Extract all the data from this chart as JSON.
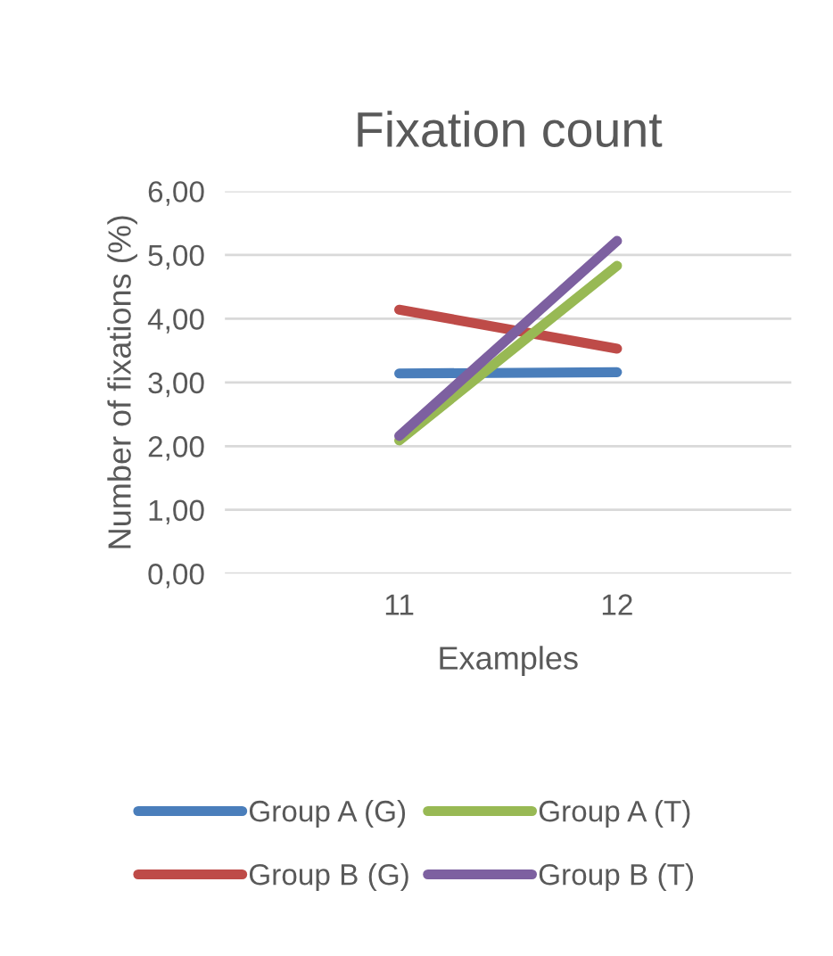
{
  "chart_data": {
    "type": "line",
    "title": "Fixation count",
    "xlabel": "Examples",
    "ylabel": "Number of fixations (%)",
    "categories": [
      "11",
      "12"
    ],
    "series": [
      {
        "name": "Group A (G)",
        "color": "#4a7ebb",
        "values": [
          3.14,
          3.16
        ]
      },
      {
        "name": "Group B (G)",
        "color": "#be4b48",
        "values": [
          4.14,
          3.53
        ]
      },
      {
        "name": "Group A (T)",
        "color": "#98b954",
        "values": [
          2.09,
          4.83
        ]
      },
      {
        "name": "Group B (T)",
        "color": "#7d60a0",
        "values": [
          2.16,
          5.22
        ]
      }
    ],
    "ylim": [
      0,
      6
    ],
    "yticks": [
      {
        "value": 0,
        "label": "0,00"
      },
      {
        "value": 1,
        "label": "1,00"
      },
      {
        "value": 2,
        "label": "2,00"
      },
      {
        "value": 3,
        "label": "3,00"
      },
      {
        "value": 4,
        "label": "4,00"
      },
      {
        "value": 5,
        "label": "5,00"
      },
      {
        "value": 6,
        "label": "6,00"
      }
    ],
    "grid": "y",
    "legend": "bottom",
    "marker": "none",
    "line_style": "solid"
  }
}
